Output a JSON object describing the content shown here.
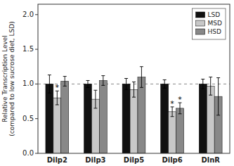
{
  "chart_data": {
    "type": "bar",
    "categories": [
      "Dilp2",
      "Dilp3",
      "Dilp5",
      "Dilp6",
      "DlnR"
    ],
    "series": [
      {
        "name": "LSD",
        "color": "#111111",
        "values": [
          1.0,
          1.0,
          1.0,
          1.0,
          1.0
        ],
        "errors": [
          0.13,
          0.05,
          0.08,
          0.06,
          0.07
        ]
      },
      {
        "name": "MSD",
        "color": "#c8c8c8",
        "values": [
          0.8,
          0.78,
          0.92,
          0.6,
          0.97
        ],
        "errors": [
          0.1,
          0.13,
          0.11,
          0.07,
          0.13
        ]
      },
      {
        "name": "HSD",
        "color": "#888888",
        "values": [
          1.04,
          1.05,
          1.1,
          0.65,
          0.82
        ],
        "errors": [
          0.07,
          0.07,
          0.15,
          0.08,
          0.27
        ]
      }
    ],
    "ylabel": "Relative Transcription Level\n(compared to low sucrose diet, LSD)",
    "ylim": [
      0,
      2.15
    ],
    "yticks": [
      {
        "value": 0,
        "label": "0.0"
      },
      0.5,
      {
        "value": 1,
        "label": "1.0"
      },
      {
        "value": 1.5,
        "label": "1.5"
      },
      {
        "value": 2,
        "label": "2.0"
      }
    ],
    "reference_line": 1.0,
    "annotations": [
      {
        "text": "*",
        "category": "Dilp2",
        "series": "MSD"
      },
      {
        "text": "*",
        "category": "Dilp6",
        "series": "MSD"
      },
      {
        "text": "*",
        "category": "Dilp6",
        "series": "HSD"
      }
    ],
    "legend": "upper right",
    "grid": false
  }
}
